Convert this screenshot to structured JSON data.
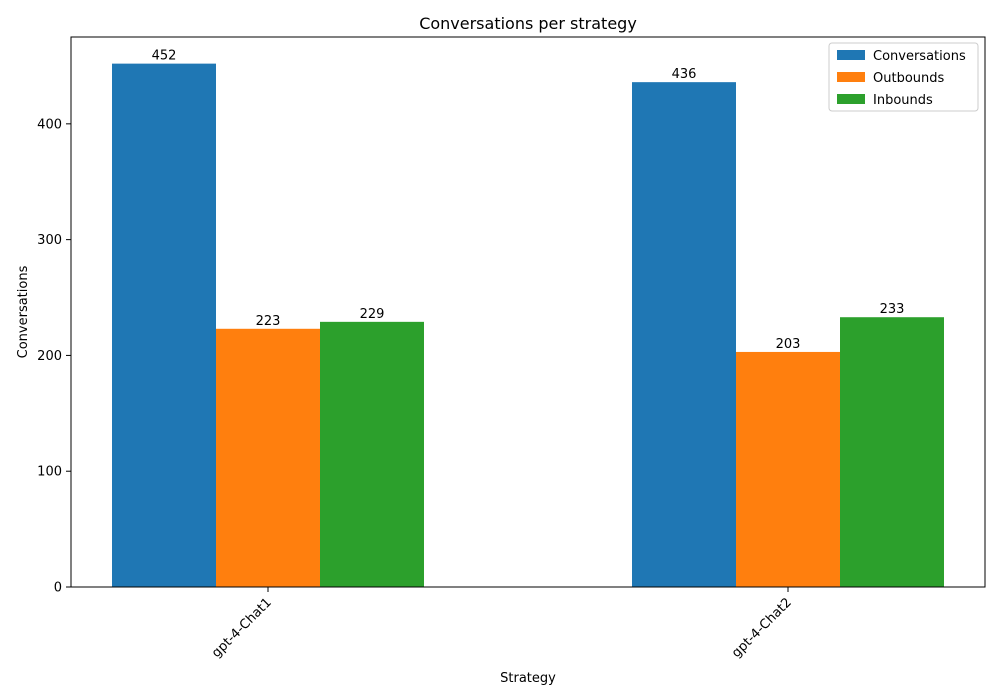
{
  "chart_data": {
    "type": "bar",
    "title": "Conversations per strategy",
    "xlabel": "Strategy",
    "ylabel": "Conversations",
    "categories": [
      "gpt-4-Chat1",
      "gpt-4-Chat2"
    ],
    "series": [
      {
        "name": "Conversations",
        "values": [
          452,
          436
        ],
        "color": "#1f77b4"
      },
      {
        "name": "Outbounds",
        "values": [
          223,
          203
        ],
        "color": "#ff7f0e"
      },
      {
        "name": "Inbounds",
        "values": [
          229,
          233
        ],
        "color": "#2ca02c"
      }
    ],
    "ylim": [
      0,
      475
    ],
    "yticks": [
      0,
      100,
      200,
      300,
      400
    ],
    "grid": false,
    "legend_position": "top-right"
  }
}
